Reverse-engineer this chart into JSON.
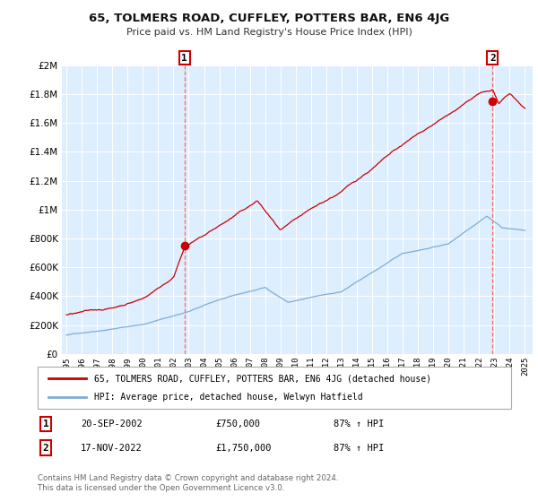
{
  "title": "65, TOLMERS ROAD, CUFFLEY, POTTERS BAR, EN6 4JG",
  "subtitle": "Price paid vs. HM Land Registry's House Price Index (HPI)",
  "legend_line1": "65, TOLMERS ROAD, CUFFLEY, POTTERS BAR, EN6 4JG (detached house)",
  "legend_line2": "HPI: Average price, detached house, Welwyn Hatfield",
  "annotation1_label": "1",
  "annotation1_date": "20-SEP-2002",
  "annotation1_price": "£750,000",
  "annotation1_hpi": "87% ↑ HPI",
  "annotation2_label": "2",
  "annotation2_date": "17-NOV-2022",
  "annotation2_price": "£1,750,000",
  "annotation2_hpi": "87% ↑ HPI",
  "footer": "Contains HM Land Registry data © Crown copyright and database right 2024.\nThis data is licensed under the Open Government Licence v3.0.",
  "red_color": "#cc0000",
  "blue_color": "#7dadd4",
  "background_color": "#ddeeff",
  "grid_color": "#ffffff",
  "dashed_line_color": "#ff6666",
  "sale1_year": 2002.72,
  "sale1_value": 750000,
  "sale2_year": 2022.88,
  "sale2_value": 1750000,
  "ylim": [
    0,
    2000000
  ],
  "xlim_start": 1994.7,
  "xlim_end": 2025.5
}
